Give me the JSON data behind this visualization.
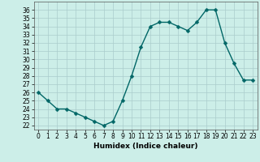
{
  "x": [
    0,
    1,
    2,
    3,
    4,
    5,
    6,
    7,
    8,
    9,
    10,
    11,
    12,
    13,
    14,
    15,
    16,
    17,
    18,
    19,
    20,
    21,
    22,
    23
  ],
  "y": [
    26.0,
    25.0,
    24.0,
    24.0,
    23.5,
    23.0,
    22.5,
    22.0,
    22.5,
    25.0,
    28.0,
    31.5,
    34.0,
    34.5,
    34.5,
    34.0,
    33.5,
    34.5,
    36.0,
    36.0,
    32.0,
    29.5,
    27.5,
    27.5
  ],
  "line_color": "#006666",
  "marker": "D",
  "marker_size": 2.5,
  "bg_color": "#cceee8",
  "grid_color": "#aacccc",
  "xlabel": "Humidex (Indice chaleur)",
  "xlim": [
    -0.5,
    23.5
  ],
  "ylim": [
    21.5,
    37.0
  ],
  "yticks": [
    22,
    23,
    24,
    25,
    26,
    27,
    28,
    29,
    30,
    31,
    32,
    33,
    34,
    35,
    36
  ],
  "xticks": [
    0,
    1,
    2,
    3,
    4,
    5,
    6,
    7,
    8,
    9,
    10,
    11,
    12,
    13,
    14,
    15,
    16,
    17,
    18,
    19,
    20,
    21,
    22,
    23
  ],
  "tick_fontsize": 5.5,
  "xlabel_fontsize": 6.5,
  "linewidth": 1.0
}
